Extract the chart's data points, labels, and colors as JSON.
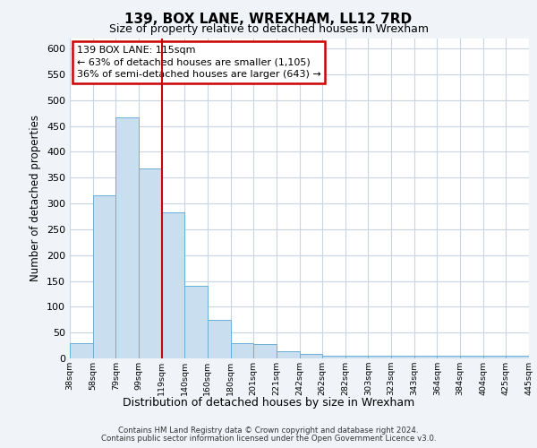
{
  "title": "139, BOX LANE, WREXHAM, LL12 7RD",
  "subtitle": "Size of property relative to detached houses in Wrexham",
  "xlabel": "Distribution of detached houses by size in Wrexham",
  "ylabel": "Number of detached properties",
  "bar_values": [
    30,
    315,
    467,
    368,
    283,
    141,
    75,
    30,
    27,
    14,
    8,
    5,
    5,
    5,
    5,
    5,
    5,
    5,
    5,
    5
  ],
  "bin_labels": [
    "38sqm",
    "58sqm",
    "79sqm",
    "99sqm",
    "119sqm",
    "140sqm",
    "160sqm",
    "180sqm",
    "201sqm",
    "221sqm",
    "242sqm",
    "262sqm",
    "282sqm",
    "303sqm",
    "323sqm",
    "343sqm",
    "364sqm",
    "384sqm",
    "404sqm",
    "425sqm",
    "445sqm"
  ],
  "bar_color": "#c9dff0",
  "bar_edge_color": "#6aafd6",
  "vline_color": "#cc0000",
  "annotation_text": "139 BOX LANE: 115sqm\n← 63% of detached houses are smaller (1,105)\n36% of semi-detached houses are larger (643) →",
  "annotation_box_color": "#ffffff",
  "annotation_box_edge_color": "#cc0000",
  "ylim": [
    0,
    620
  ],
  "yticks": [
    0,
    50,
    100,
    150,
    200,
    250,
    300,
    350,
    400,
    450,
    500,
    550,
    600
  ],
  "footer_line1": "Contains HM Land Registry data © Crown copyright and database right 2024.",
  "footer_line2": "Contains public sector information licensed under the Open Government Licence v3.0.",
  "background_color": "#f0f4f8",
  "plot_bg_color": "#ffffff",
  "grid_color": "#c8d4e2"
}
